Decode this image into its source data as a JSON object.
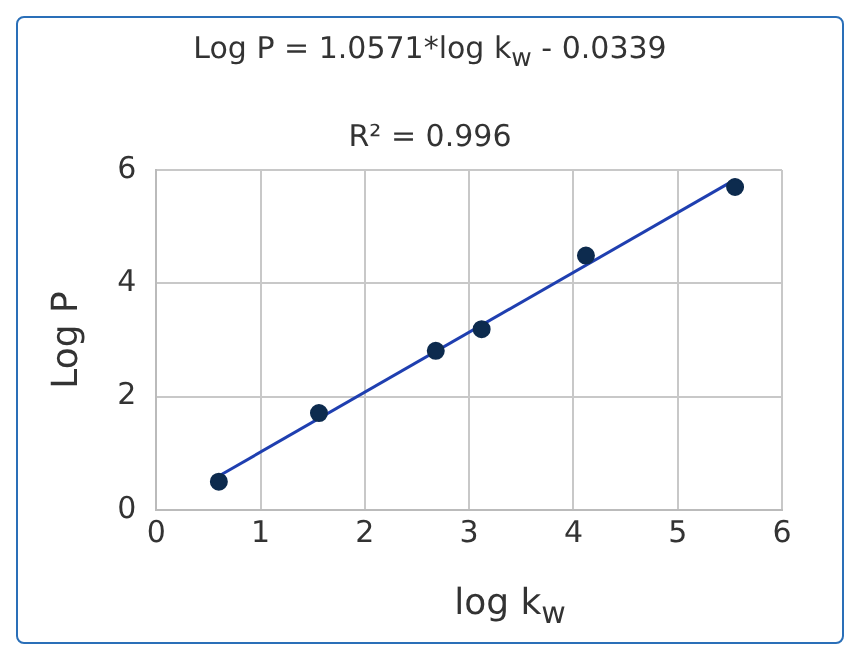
{
  "chart_data": {
    "type": "scatter",
    "title": "Log P = 1.0571*log k$_{w}$ - 0.0339",
    "subtitle": "R² = 0.996",
    "xlabel": "log k$_{w}$",
    "ylabel": "Log P",
    "series": [
      {
        "color": "#0d2b4e",
        "marker": "circle",
        "x": [
          0.6,
          1.56,
          2.68,
          3.12,
          4.12,
          5.55
        ],
        "values": [
          0.5,
          1.71,
          2.81,
          3.19,
          4.49,
          5.7
        ]
      },
      {
        "type": "line",
        "marker": "none",
        "color": "#1f3fb0",
        "x": [
          0.6,
          5.55
        ],
        "values": [
          0.6,
          5.83
        ]
      }
    ],
    "xlim": [
      0,
      6
    ],
    "ylim": [
      0,
      6
    ],
    "xticks": [
      0,
      1,
      2,
      3,
      4,
      5,
      6
    ],
    "yticks": [
      0,
      2,
      4,
      6
    ],
    "grid": true
  }
}
